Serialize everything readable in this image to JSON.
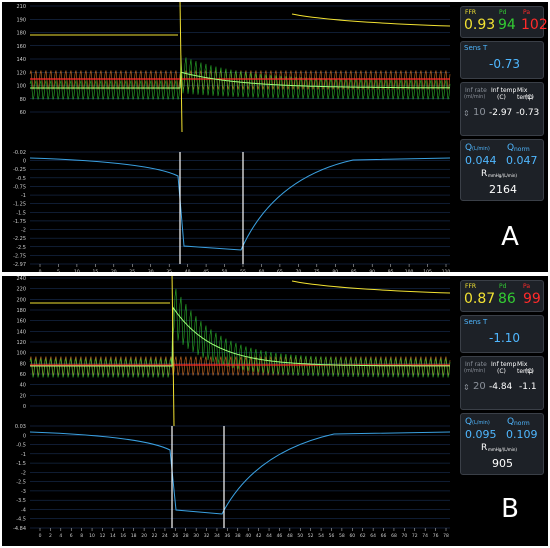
{
  "panels": [
    {
      "id": "A",
      "ffr_label": "FFR",
      "pd_label": "Pd",
      "pa_label": "Pa",
      "ffr": "0.93",
      "pd": "94",
      "pa": "102",
      "sens_label": "Sens T",
      "sens_value": "-0.73",
      "inf_rate_label": "Inf rate",
      "inf_rate_unit": "(ml/min)",
      "inf_rate": "10",
      "inf_temp_label": "Inf temp",
      "inf_temp_unit": "(C)",
      "inf_temp": "-2.97",
      "mix_temp_label": "Mix temp",
      "mix_temp_unit": "(C)",
      "mix_temp": "-0.73",
      "q_label": "Q",
      "q_unit": "(L/min)",
      "q": "0.044",
      "qnorm_label": "Q",
      "qnorm_sub": "norm",
      "qnorm": "0.047",
      "r_label": "R",
      "r_unit": "mmHg/(L/min)",
      "r": "2164",
      "panel_letter": "A",
      "pressure_ticks": [
        "210",
        "190",
        "180",
        "160",
        "140",
        "120",
        "100",
        "80",
        "60"
      ],
      "temp_ticks": [
        "-0.02",
        "0",
        "-0.25",
        "-0.5",
        "-0.75",
        "-1",
        "-1.25",
        "-1.5",
        "-1.75",
        "-2",
        "-2.25",
        "-2.5",
        "-2.75",
        "-2.97"
      ],
      "time_ticks": [
        "0",
        "5",
        "10",
        "15",
        "20",
        "25",
        "30",
        "35",
        "40",
        "45",
        "50",
        "55",
        "60",
        "65",
        "70",
        "75",
        "80",
        "85",
        "90",
        "95",
        "100",
        "105",
        "110"
      ],
      "colors": {
        "ffr": "#f2e232",
        "pd": "#33cc33",
        "pa": "#ff2a2a",
        "temp": "#3aa0e0",
        "label": "#4fb7ff"
      }
    },
    {
      "id": "B",
      "ffr_label": "FFR",
      "pd_label": "Pd",
      "pa_label": "Pa",
      "ffr": "0.87",
      "pd": "86",
      "pa": "99",
      "sens_label": "Sens T",
      "sens_value": "-1.10",
      "inf_rate_label": "Inf rate",
      "inf_rate_unit": "(ml/min)",
      "inf_rate": "20",
      "inf_temp_label": "Inf temp",
      "inf_temp_unit": "(C)",
      "inf_temp": "-4.84",
      "mix_temp_label": "Mix temp",
      "mix_temp_unit": "(C)",
      "mix_temp": "-1.1",
      "q_label": "Q",
      "q_unit": "(L/min)",
      "q": "0.095",
      "qnorm_label": "Q",
      "qnorm_sub": "norm",
      "qnorm": "0.109",
      "r_label": "R",
      "r_unit": "mmHg/(L/min)",
      "r": "905",
      "panel_letter": "B",
      "pressure_ticks": [
        "240",
        "220",
        "200",
        "180",
        "160",
        "140",
        "120",
        "100",
        "80",
        "60",
        "40",
        "20",
        "0"
      ],
      "temp_ticks": [
        "0.03",
        "0",
        "-0.5",
        "-1",
        "-1.5",
        "-2",
        "-2.5",
        "-3",
        "-3.5",
        "-4",
        "-4.5",
        "-4.84"
      ],
      "time_ticks": [
        "0",
        "2",
        "4",
        "6",
        "8",
        "10",
        "12",
        "14",
        "16",
        "18",
        "20",
        "22",
        "24",
        "26",
        "28",
        "30",
        "32",
        "34",
        "36",
        "38",
        "40",
        "42",
        "44",
        "46",
        "48",
        "50",
        "52",
        "54",
        "56",
        "58",
        "60",
        "62",
        "64",
        "66",
        "68",
        "70",
        "72",
        "74",
        "76",
        "78"
      ],
      "colors": {
        "ffr": "#f2e232",
        "pd": "#33cc33",
        "pa": "#ff2a2a",
        "temp": "#3aa0e0",
        "label": "#4fb7ff"
      }
    }
  ]
}
